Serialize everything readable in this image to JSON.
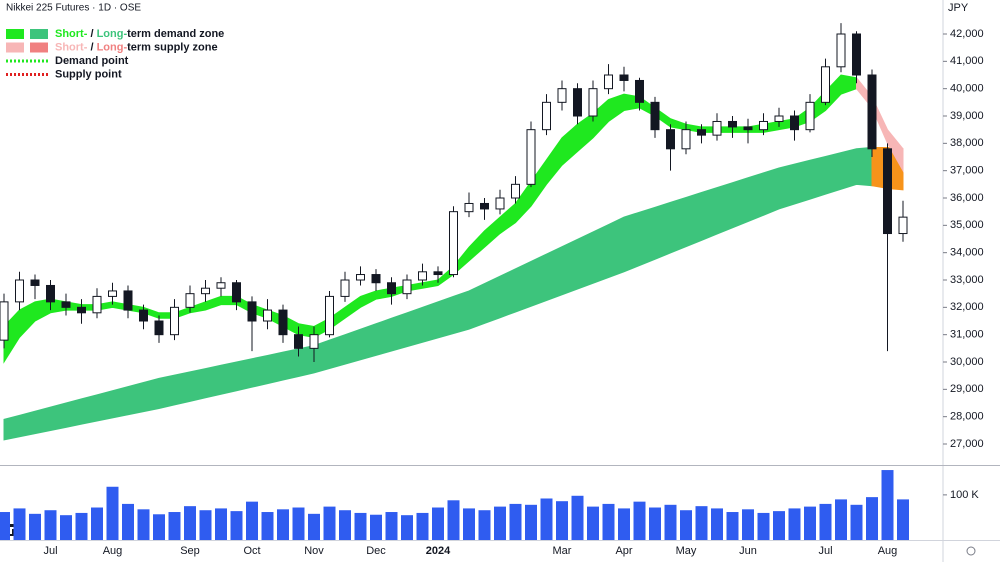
{
  "header": {
    "title": "Nikkei 225 Futures · 1D · OSE",
    "currency": "JPY"
  },
  "chart_data": [
    {
      "type": "candlestick",
      "categories": [
        null,
        null,
        null,
        "Jul",
        null,
        null,
        null,
        "Aug",
        null,
        null,
        null,
        null,
        "Sep",
        null,
        null,
        null,
        "Oct",
        null,
        null,
        null,
        "Nov",
        null,
        null,
        null,
        "Dec",
        null,
        null,
        null,
        "2024",
        null,
        null,
        null,
        null,
        null,
        null,
        null,
        "Mar",
        null,
        null,
        null,
        "Apr",
        null,
        null,
        null,
        "May",
        null,
        null,
        null,
        "Jun",
        null,
        null,
        null,
        null,
        "Jul",
        null,
        null,
        null,
        "Aug",
        null
      ],
      "open": [
        30800,
        32200,
        33000,
        32800,
        32200,
        32000,
        31800,
        32400,
        32600,
        31900,
        31500,
        31000,
        32000,
        32500,
        32700,
        32900,
        32200,
        31500,
        31900,
        31000,
        30500,
        31000,
        32400,
        33000,
        33200,
        32900,
        32500,
        33000,
        33300,
        33200,
        35500,
        35800,
        35600,
        36000,
        36500,
        38500,
        39500,
        40000,
        39000,
        40000,
        40500,
        40300,
        39500,
        38500,
        37800,
        38500,
        38300,
        38800,
        38600,
        38500,
        38800,
        39000,
        38500,
        39500,
        40800,
        42000,
        40500,
        37800,
        34700
      ],
      "high": [
        32500,
        33300,
        33200,
        33000,
        32500,
        32300,
        32700,
        32900,
        32800,
        32100,
        31700,
        32300,
        32800,
        33000,
        33100,
        33000,
        32400,
        32300,
        32100,
        31300,
        31300,
        32600,
        33300,
        33500,
        33400,
        33100,
        33200,
        33600,
        33500,
        35700,
        36200,
        36000,
        36300,
        36800,
        38800,
        39800,
        40300,
        40200,
        40300,
        40900,
        40800,
        40400,
        39700,
        38700,
        38800,
        38700,
        39100,
        39000,
        38900,
        39100,
        39300,
        39200,
        39800,
        41100,
        42400,
        42100,
        40700,
        38000,
        35900
      ],
      "low": [
        30500,
        31900,
        32300,
        31900,
        31700,
        31400,
        31600,
        32100,
        31600,
        31200,
        30700,
        30800,
        31800,
        32200,
        32400,
        31900,
        30400,
        31200,
        30700,
        30200,
        30000,
        30900,
        32200,
        32800,
        32600,
        32100,
        32300,
        32800,
        32900,
        33100,
        35300,
        35200,
        35400,
        35800,
        36400,
        38300,
        39200,
        38700,
        38800,
        39800,
        39900,
        39200,
        38200,
        37000,
        37600,
        38000,
        38100,
        38200,
        38000,
        38300,
        38600,
        38100,
        38400,
        39400,
        40600,
        40200,
        37500,
        30400,
        34400
      ],
      "close": [
        32200,
        33000,
        32800,
        32200,
        32000,
        31800,
        32400,
        32600,
        31900,
        31500,
        31000,
        32000,
        32500,
        32700,
        32900,
        32200,
        31500,
        31900,
        31000,
        30500,
        31000,
        32400,
        33000,
        33200,
        32900,
        32500,
        33000,
        33300,
        33200,
        35500,
        35800,
        35600,
        36000,
        36500,
        38500,
        39500,
        40000,
        39000,
        40000,
        40500,
        40300,
        39500,
        38500,
        37800,
        38500,
        38300,
        38800,
        38600,
        38500,
        38800,
        39000,
        38500,
        39500,
        40800,
        42000,
        40500,
        37800,
        34700,
        35300
      ],
      "bands": [
        {
          "color": "#3dc47c",
          "upper": [
            27900,
            28050,
            28200,
            28350,
            28500,
            28650,
            28800,
            28950,
            29100,
            29250,
            29400,
            29520,
            29640,
            29760,
            29880,
            30000,
            30120,
            30240,
            30360,
            30480,
            30600,
            30800,
            31000,
            31200,
            31400,
            31600,
            31800,
            32000,
            32200,
            32400,
            32600,
            32870,
            33140,
            33410,
            33680,
            33950,
            34220,
            34490,
            34760,
            35030,
            35300,
            35480,
            35660,
            35840,
            36020,
            36200,
            36380,
            36560,
            36740,
            36920,
            37100,
            37240,
            37380,
            37520,
            37660,
            37800,
            37850,
            null,
            null
          ],
          "lower": [
            27150,
            27265,
            27380,
            27495,
            27610,
            27725,
            27840,
            27955,
            28070,
            28185,
            28300,
            28430,
            28560,
            28690,
            28820,
            28950,
            29080,
            29210,
            29340,
            29470,
            29600,
            29760,
            29920,
            30080,
            30240,
            30400,
            30560,
            30720,
            30880,
            31040,
            31200,
            31410,
            31620,
            31830,
            32040,
            32250,
            32460,
            32670,
            32880,
            33090,
            33300,
            33530,
            33760,
            33990,
            34220,
            34450,
            34680,
            34910,
            35140,
            35370,
            35600,
            35780,
            35960,
            36140,
            36320,
            36500,
            36450,
            null,
            null
          ]
        },
        {
          "color": "#f7931a",
          "upper": [
            null,
            null,
            null,
            null,
            null,
            null,
            null,
            null,
            null,
            null,
            null,
            null,
            null,
            null,
            null,
            null,
            null,
            null,
            null,
            null,
            null,
            null,
            null,
            null,
            null,
            null,
            null,
            null,
            null,
            null,
            null,
            null,
            null,
            null,
            null,
            null,
            null,
            null,
            null,
            null,
            null,
            null,
            null,
            null,
            null,
            null,
            null,
            null,
            null,
            null,
            null,
            null,
            null,
            null,
            null,
            null,
            37850,
            37850,
            37800
          ],
          "lower": [
            null,
            null,
            null,
            null,
            null,
            null,
            null,
            null,
            null,
            null,
            null,
            null,
            null,
            null,
            null,
            null,
            null,
            null,
            null,
            null,
            null,
            null,
            null,
            null,
            null,
            null,
            null,
            null,
            null,
            null,
            null,
            null,
            null,
            null,
            null,
            null,
            null,
            null,
            null,
            null,
            null,
            null,
            null,
            null,
            null,
            null,
            null,
            null,
            null,
            null,
            null,
            null,
            null,
            null,
            null,
            null,
            36450,
            36350,
            36300
          ]
        },
        {
          "color": "#1fe81f",
          "upper": [
            31300,
            31900,
            32200,
            32300,
            32200,
            32100,
            32100,
            32200,
            32100,
            32000,
            31800,
            31800,
            32000,
            32200,
            32400,
            32400,
            32100,
            31900,
            31700,
            31400,
            31300,
            31600,
            32000,
            32400,
            32600,
            32700,
            32800,
            32900,
            33000,
            33500,
            34200,
            34800,
            35300,
            35800,
            36600,
            37400,
            38200,
            38700,
            39100,
            39600,
            39800,
            39700,
            39300,
            38900,
            38700,
            38600,
            38600,
            38600,
            38600,
            38700,
            38800,
            38900,
            39300,
            39900,
            40500,
            40400,
            null,
            null,
            null
          ],
          "lower": [
            30000,
            30900,
            31500,
            31800,
            31900,
            31900,
            31900,
            32000,
            31900,
            31800,
            31600,
            31600,
            31800,
            31900,
            32100,
            32100,
            31800,
            31600,
            31300,
            31000,
            30900,
            31200,
            31600,
            32000,
            32300,
            32400,
            32600,
            32700,
            32800,
            33200,
            33700,
            34200,
            34700,
            35100,
            35700,
            36500,
            37200,
            37700,
            38200,
            38800,
            39200,
            39300,
            39000,
            38600,
            38500,
            38400,
            38400,
            38400,
            38400,
            38400,
            38500,
            38600,
            38800,
            39200,
            39800,
            40000,
            null,
            null,
            null
          ]
        },
        {
          "color": "#f7b6b6",
          "upper": [
            null,
            null,
            null,
            null,
            null,
            null,
            null,
            null,
            null,
            null,
            null,
            null,
            null,
            null,
            null,
            null,
            null,
            null,
            null,
            null,
            null,
            null,
            null,
            null,
            null,
            null,
            null,
            null,
            null,
            null,
            null,
            null,
            null,
            null,
            null,
            null,
            null,
            null,
            null,
            null,
            null,
            null,
            null,
            null,
            null,
            null,
            null,
            null,
            null,
            null,
            null,
            null,
            null,
            null,
            null,
            40400,
            39700,
            38500,
            37800
          ],
          "lower": [
            null,
            null,
            null,
            null,
            null,
            null,
            null,
            null,
            null,
            null,
            null,
            null,
            null,
            null,
            null,
            null,
            null,
            null,
            null,
            null,
            null,
            null,
            null,
            null,
            null,
            null,
            null,
            null,
            null,
            null,
            null,
            null,
            null,
            null,
            null,
            null,
            null,
            null,
            null,
            null,
            null,
            null,
            null,
            null,
            null,
            null,
            null,
            null,
            null,
            null,
            null,
            null,
            null,
            null,
            null,
            40000,
            39300,
            38000,
            37000
          ]
        }
      ],
      "legend": [
        {
          "swatches": [
            "#1fe81f",
            "#3dc47c"
          ],
          "spans": [
            {
              "text": "Short-",
              "color": "#1fe81f"
            },
            {
              "text": " / ",
              "color": "#131722"
            },
            {
              "text": "Long-",
              "color": "#3dc47c"
            },
            {
              "text": "term demand zone",
              "color": "#131722"
            }
          ]
        },
        {
          "swatches": [
            "#f7b6b6",
            "#f08080"
          ],
          "spans": [
            {
              "text": "Short-",
              "color": "#f7b6b6"
            },
            {
              "text": " / ",
              "color": "#131722"
            },
            {
              "text": "Long-",
              "color": "#f08080"
            },
            {
              "text": "term supply zone",
              "color": "#131722"
            }
          ]
        },
        {
          "dotted": "#1fe81f",
          "spans": [
            {
              "text": "Demand point",
              "color": "#131722"
            }
          ]
        },
        {
          "dotted": "#e02020",
          "spans": [
            {
              "text": "Supply point",
              "color": "#131722"
            }
          ]
        }
      ],
      "ylim": [
        26232,
        43244
      ],
      "yticks": [
        {
          "value": 27000,
          "label": "27,000"
        },
        {
          "value": 28000,
          "label": "28,000"
        },
        {
          "value": 29000,
          "label": "29,000"
        },
        {
          "value": 30000,
          "label": "30,000"
        },
        {
          "value": 31000,
          "label": "31,000"
        },
        {
          "value": 32000,
          "label": "32,000"
        },
        {
          "value": 33000,
          "label": "33,000"
        },
        {
          "value": 34000,
          "label": "34,000"
        },
        {
          "value": 35000,
          "label": "35,000"
        },
        {
          "value": 36000,
          "label": "36,000"
        },
        {
          "value": 37000,
          "label": "37,000"
        },
        {
          "value": 38000,
          "label": "38,000"
        },
        {
          "value": 39000,
          "label": "39,000"
        },
        {
          "value": 40000,
          "label": "40,000"
        },
        {
          "value": 41000,
          "label": "41,000"
        },
        {
          "value": 42000,
          "label": "42,000"
        }
      ]
    },
    {
      "type": "bar",
      "color": "#2f5cf0",
      "values": [
        62000,
        70000,
        58000,
        66000,
        55000,
        60000,
        72000,
        118000,
        80000,
        68000,
        57000,
        62000,
        75000,
        66000,
        70000,
        64000,
        85000,
        62000,
        68000,
        72000,
        58000,
        74000,
        66000,
        60000,
        56000,
        62000,
        55000,
        60000,
        72000,
        88000,
        70000,
        66000,
        74000,
        80000,
        78000,
        92000,
        86000,
        98000,
        74000,
        80000,
        70000,
        85000,
        72000,
        78000,
        66000,
        75000,
        70000,
        62000,
        68000,
        60000,
        64000,
        70000,
        74000,
        80000,
        90000,
        78000,
        95000,
        155000,
        90000
      ],
      "ylim": [
        0,
        164000
      ],
      "yticks": [
        {
          "value": 100000,
          "label": "100 K"
        }
      ]
    }
  ]
}
